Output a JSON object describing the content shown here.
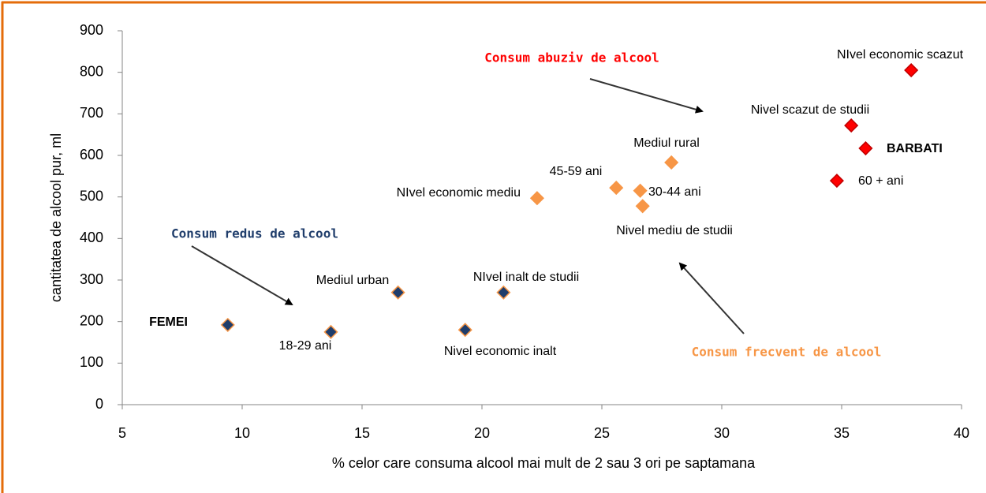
{
  "chart_data": {
    "type": "scatter",
    "x_label": "% celor care consuma alcool mai mult de 2 sau 3 ori pe saptamana",
    "y_label": "cantitatea de alcool pur, ml",
    "xlim": [
      5,
      40
    ],
    "xticks": [
      5,
      10,
      15,
      20,
      25,
      30,
      35,
      40
    ],
    "ylim": [
      0,
      900
    ],
    "yticks": [
      0,
      100,
      200,
      300,
      400,
      500,
      600,
      700,
      800,
      900
    ],
    "annotations": [
      "Consum abuziv de alcool",
      "Consum redus de alcool",
      "Consum frecvent de alcool"
    ],
    "series": [
      {
        "color": "#1f3d6b",
        "points": [
          {
            "label": "FEMEI",
            "x": 9.4,
            "y": 192
          },
          {
            "label": "18-29 ani",
            "x": 13.7,
            "y": 175
          },
          {
            "label": "Mediul urban",
            "x": 16.5,
            "y": 270
          },
          {
            "label": "Nivel economic inalt",
            "x": 19.3,
            "y": 180
          },
          {
            "label": "NIvel inalt de studii",
            "x": 20.9,
            "y": 270
          }
        ]
      },
      {
        "color": "#f79646",
        "points": [
          {
            "label": "NIvel economic mediu",
            "x": 22.3,
            "y": 497
          },
          {
            "label": "45-59 ani",
            "x": 25.6,
            "y": 522
          },
          {
            "label": "30-44 ani",
            "x": 26.6,
            "y": 515
          },
          {
            "label": "Nivel mediu de studii",
            "x": 26.7,
            "y": 478
          },
          {
            "label": "Mediul rural",
            "x": 27.9,
            "y": 583
          }
        ]
      },
      {
        "color": "#ff0000",
        "points": [
          {
            "label": "NIvel economic scazut",
            "x": 37.9,
            "y": 805
          },
          {
            "label": "Nivel scazut de studii",
            "x": 35.4,
            "y": 672
          },
          {
            "label": "BARBATI",
            "x": 36.0,
            "y": 617
          },
          {
            "label": "60 + ani",
            "x": 34.8,
            "y": 539
          }
        ]
      }
    ]
  }
}
